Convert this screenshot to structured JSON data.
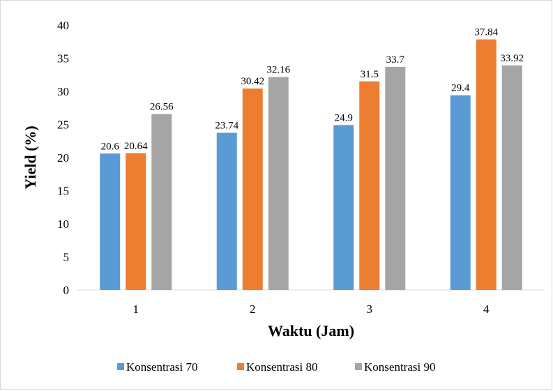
{
  "chart_data": {
    "type": "bar",
    "categories": [
      "1",
      "2",
      "3",
      "4"
    ],
    "series": [
      {
        "name": "Konsentrasi 70",
        "color": "#5b9bd5",
        "values": [
          20.6,
          23.74,
          24.9,
          29.4
        ]
      },
      {
        "name": "Konsentrasi 80",
        "color": "#ed7d31",
        "values": [
          20.64,
          30.42,
          31.5,
          37.84
        ]
      },
      {
        "name": "Konsentrasi 90",
        "color": "#a5a5a5",
        "values": [
          26.56,
          32.16,
          33.7,
          33.92
        ]
      }
    ],
    "title": "",
    "xlabel": "Waktu (Jam)",
    "ylabel": "Yield (%)",
    "ylim": [
      0,
      40
    ],
    "yticks": [
      "0",
      "5",
      "10",
      "15",
      "20",
      "25",
      "30",
      "35",
      "40"
    ],
    "grid": false,
    "legend_position": "bottom"
  }
}
